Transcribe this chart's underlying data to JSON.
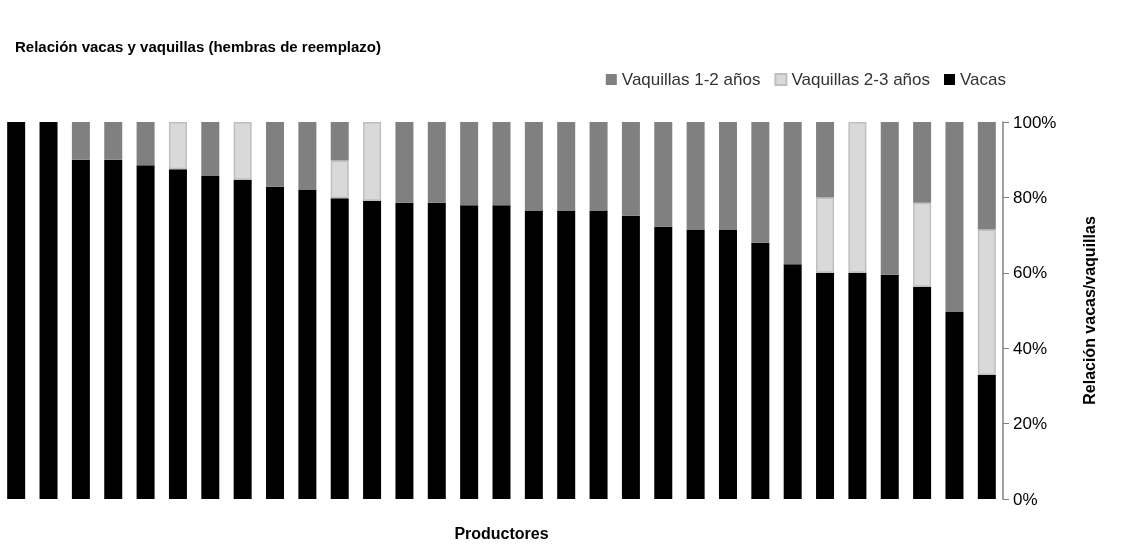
{
  "chart_data": {
    "type": "bar",
    "title": "Relación vacas y vaquillas (hembras de reemplazo)",
    "xlabel": "Productores",
    "ylabel": "Relación vacas/vaquillas",
    "categories": [
      null,
      null,
      null,
      null,
      null,
      null,
      null,
      null,
      null,
      null,
      null,
      null,
      null,
      null,
      null,
      null,
      null,
      null,
      null,
      null,
      null,
      null,
      null,
      null,
      null,
      null,
      null,
      null,
      null,
      null,
      null
    ],
    "stacked": true,
    "legend": "top right",
    "grid": false,
    "ylim": [
      0,
      100
    ],
    "yticks": [
      {
        "value": 0,
        "label": "0%"
      },
      {
        "value": 20,
        "label": "20%"
      },
      {
        "value": 40,
        "label": "40%"
      },
      {
        "value": 60,
        "label": "60%"
      },
      {
        "value": 80,
        "label": "80%"
      },
      {
        "value": 100,
        "label": "100%"
      }
    ],
    "series": [
      {
        "name": "Vacas",
        "color": "#000000",
        "values": [
          100,
          100,
          90,
          90,
          88.5,
          87.5,
          85.7,
          84.7,
          82.8,
          82.1,
          79.8,
          79.1,
          78.6,
          78.6,
          77.9,
          77.9,
          76.5,
          76.5,
          76.5,
          75.1,
          72.2,
          71.5,
          71.5,
          68,
          62.3,
          60,
          60,
          59.5,
          56.3,
          49.6,
          32.9
        ]
      },
      {
        "name": "Vaquillas 2-3 años",
        "color": "#d9d9d9",
        "values": [
          0,
          0,
          0,
          0,
          0,
          12.5,
          0,
          15.3,
          0,
          0,
          10,
          20.9,
          0,
          0,
          0,
          0,
          0,
          0,
          0,
          0,
          0,
          0,
          0,
          0,
          0,
          20,
          40,
          0,
          22.3,
          0,
          38.6
        ]
      },
      {
        "name": "Vaquillas 1-2 años",
        "color": "#808080",
        "values": [
          0,
          0,
          10,
          10,
          11.5,
          0,
          14.3,
          0,
          17.2,
          17.9,
          10.2,
          0,
          21.4,
          21.4,
          22.1,
          22.1,
          23.5,
          23.5,
          23.5,
          24.9,
          27.8,
          28.5,
          28.5,
          32,
          37.7,
          20,
          0,
          40.5,
          21.4,
          50.4,
          28.5
        ]
      }
    ]
  }
}
